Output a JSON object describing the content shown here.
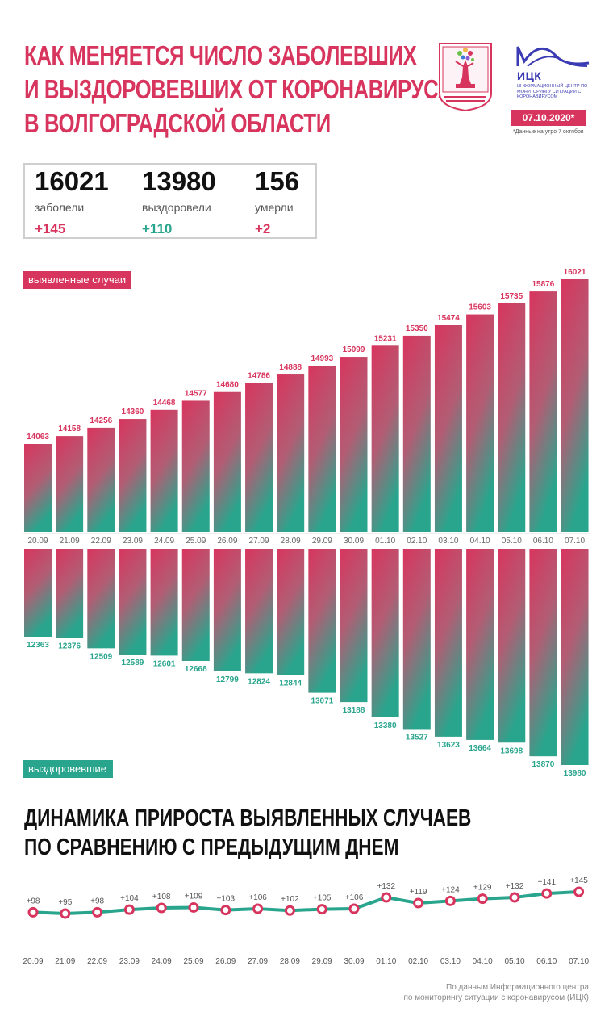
{
  "header": {
    "title_lines": [
      "КАК МЕНЯЕТСЯ ЧИСЛО ЗАБОЛЕВШИХ",
      "И ВЫЗДОРОВЕВШИХ ОТ КОРОНАВИРУСА",
      "В ВОЛГОГРАДСКОЙ ОБЛАСТИ"
    ],
    "logo_name": "ИЦК",
    "logo_subtitle": "Информационный центр по мониторингу ситуации с коронавирусом",
    "date_badge": "07.10.2020*",
    "date_note": "*Данные на утро 7 октября"
  },
  "stats": [
    {
      "value": "16021",
      "label": "заболели",
      "delta": "+145",
      "color": "#d8355e"
    },
    {
      "value": "13980",
      "label": "выздоровели",
      "delta": "+110",
      "color": "#2aa58d"
    },
    {
      "value": "156",
      "label": "умерли",
      "delta": "+2",
      "color": "#d8355e"
    }
  ],
  "colors": {
    "accent_red": "#d8355e",
    "accent_teal": "#2aa58d",
    "text_dark": "#111111"
  },
  "chart_data": [
    {
      "type": "bar",
      "categories": [
        "20.09",
        "21.09",
        "22.09",
        "23.09",
        "24.09",
        "25.09",
        "26.09",
        "27.09",
        "28.09",
        "29.09",
        "30.09",
        "01.10",
        "02.10",
        "03.10",
        "04.10",
        "05.10",
        "06.10",
        "07.10"
      ],
      "series": [
        {
          "name": "выявленные случаи",
          "values": [
            14063,
            14158,
            14256,
            14360,
            14468,
            14577,
            14680,
            14786,
            14888,
            14993,
            15099,
            15231,
            15350,
            15474,
            15603,
            15735,
            15876,
            16021
          ],
          "color": "#d8355e"
        },
        {
          "name": "выздоровевшие",
          "values": [
            12363,
            12376,
            12509,
            12589,
            12601,
            12668,
            12799,
            12824,
            12844,
            13071,
            13188,
            13380,
            13527,
            13623,
            13664,
            13698,
            13870,
            13980
          ],
          "color": "#2aa58d"
        }
      ],
      "legend_position": "top-left / bottom-left"
    },
    {
      "type": "line",
      "title_lines": [
        "ДИНАМИКА ПРИРОСТА ВЫЯВЛЕННЫХ СЛУЧАЕВ",
        "ПО СРАВНЕНИЮ С ПРЕДЫДУЩИМ ДНЕМ"
      ],
      "categories": [
        "20.09",
        "21.09",
        "22.09",
        "23.09",
        "24.09",
        "25.09",
        "26.09",
        "27.09",
        "28.09",
        "29.09",
        "30.09",
        "01.10",
        "02.10",
        "03.10",
        "04.10",
        "05.10",
        "06.10",
        "07.10"
      ],
      "values": [
        98,
        95,
        98,
        104,
        108,
        109,
        103,
        106,
        102,
        105,
        106,
        132,
        119,
        124,
        129,
        132,
        141,
        145
      ],
      "labels": [
        "+98",
        "+95",
        "+98",
        "+104",
        "+108",
        "+109",
        "+103",
        "+106",
        "+102",
        "+105",
        "+106",
        "+132",
        "+119",
        "+124",
        "+129",
        "+132",
        "+141",
        "+145"
      ],
      "line_color": "#2aa58d",
      "marker_color": "#d8355e"
    }
  ],
  "source_lines": [
    "По данным Информационного центра",
    "по мониторингу ситуации с коронавирусом (ИЦК)"
  ]
}
